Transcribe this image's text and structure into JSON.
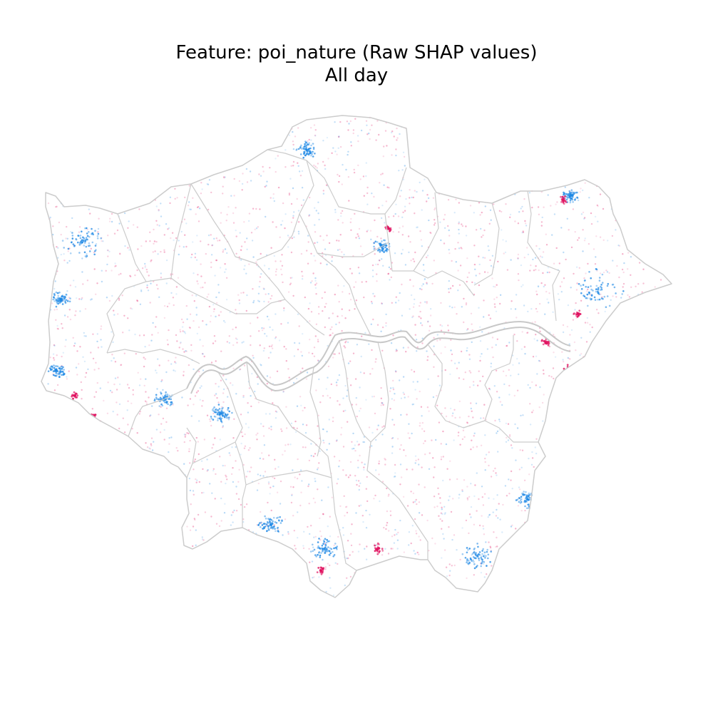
{
  "title": {
    "line1": "Feature: poi_nature (Raw SHAP values)",
    "line2": "All day"
  },
  "map": {
    "region_shown": "Greater London boroughs",
    "boundary_color": "#cccccc",
    "river_color": "#c8c8c8",
    "background": "#ffffff",
    "colormap": {
      "positive_color": "#e0115f",
      "negative_color": "#1e88e5",
      "neutral_color": "#ffffff"
    },
    "pattern_notes": "Point-level SHAP values; mostly faint pink and light blue scatter, with denser blue clusters in the west (Hillingdon), east (Havering/Bexley riverside), south-east (Bromley) and south (Croydon/Sutton); strong magenta points scattered near the eastern riverside."
  }
}
